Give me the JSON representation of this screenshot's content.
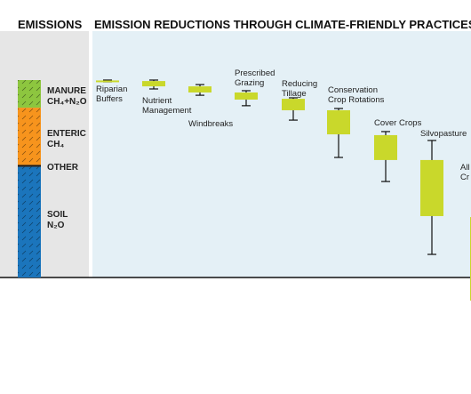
{
  "chart_data": [
    {
      "type": "stacked-column",
      "title": "EMISSIONS",
      "series": [
        {
          "name": [
            "MANURE",
            "CH₄+N₂O"
          ],
          "color": "#8dc63f",
          "values": [
            14
          ]
        },
        {
          "name": [
            "ENTERIC",
            "CH₄"
          ],
          "color": "#f7941d",
          "values": [
            29
          ]
        },
        {
          "name": [
            "OTHER"
          ],
          "color": "#1a1a1a",
          "values": [
            1
          ]
        },
        {
          "name": [
            "SOIL",
            "N₂O"
          ],
          "color": "#1b75bc",
          "values": [
            56
          ]
        }
      ]
    },
    {
      "type": "box",
      "title": "EMISSION REDUCTIONS THROUGH CLIMATE-FRIENDLY PRACTICES",
      "color": "#c9d82b",
      "categories": [
        [
          "Riparian",
          "Buffers"
        ],
        [
          "Nutrient",
          "Management"
        ],
        [
          "Windbreaks"
        ],
        [
          "Prescribed",
          "Grazing"
        ],
        [
          "Reducing",
          "Tillage"
        ],
        [
          "Conservation",
          "Crop Rotations"
        ],
        [
          "Cover Crops"
        ],
        [
          "Silvopasture"
        ],
        [
          "All",
          "Cr"
        ]
      ],
      "low": [
        0,
        0,
        2.3,
        5.4,
        9,
        14.4,
        26.1,
        30.6,
        69.4
      ],
      "q1": [
        0.2,
        0.5,
        3.2,
        6.3,
        9.5,
        15.3,
        27.9,
        40.5,
        69.4
      ],
      "q3": [
        0.7,
        3.2,
        6.3,
        9.9,
        15.3,
        27.5,
        40.5,
        68.9,
        111.7
      ],
      "high": [
        0.9,
        4.5,
        7.7,
        13,
        20.3,
        39.2,
        51.4,
        88.3,
        111.7
      ]
    }
  ]
}
